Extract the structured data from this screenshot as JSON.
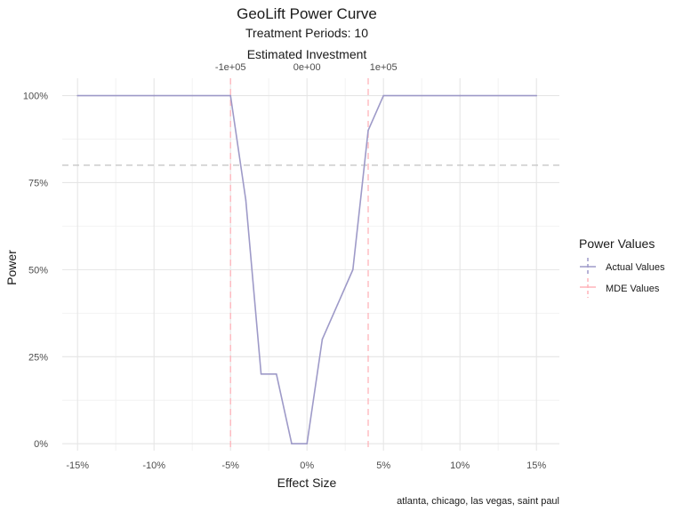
{
  "chart_data": {
    "type": "line",
    "title": "GeoLift Power Curve",
    "subtitle": "Treatment Periods: 10",
    "secondary_axis_title": "Estimated Investment",
    "xlabel": "Effect Size",
    "ylabel": "Power",
    "caption": "atlanta, chicago, las vegas, saint paul",
    "x_tick_labels": [
      "-15%",
      "-10%",
      "-5%",
      "0%",
      "5%",
      "10%",
      "15%"
    ],
    "x_tick_values": [
      -0.15,
      -0.1,
      -0.05,
      0,
      0.05,
      0.1,
      0.15
    ],
    "y_tick_labels": [
      "0%",
      "25%",
      "50%",
      "75%",
      "100%"
    ],
    "y_tick_values": [
      0,
      0.25,
      0.5,
      0.75,
      1.0
    ],
    "secondary_x_tick_labels": [
      "-1e+05",
      "0e+00",
      "1e+05"
    ],
    "secondary_x_tick_values": [
      -100000,
      0,
      100000
    ],
    "secondary_x_per_effect": 2000000,
    "xlim": [
      -0.16,
      0.165
    ],
    "ylim": [
      -0.02,
      1.05
    ],
    "grid": true,
    "legend_position": "right",
    "legend_title": "Power Values",
    "series": [
      {
        "name": "Actual Values",
        "color": "#9e9ac8",
        "x": [
          -0.15,
          -0.1,
          -0.05,
          -0.04,
          -0.03,
          -0.02,
          -0.01,
          0.0,
          0.01,
          0.02,
          0.03,
          0.04,
          0.05,
          0.1,
          0.15
        ],
        "y": [
          1.0,
          1.0,
          1.0,
          0.7,
          0.2,
          0.2,
          0.0,
          0.0,
          0.3,
          0.4,
          0.5,
          0.9,
          1.0,
          1.0,
          1.0
        ]
      }
    ],
    "mde_lines": {
      "name": "MDE Values",
      "color": "#ffb3ba",
      "x": [
        -0.05,
        0.04
      ]
    },
    "reference_line": {
      "y": 0.8,
      "color": "#c2c2c2"
    }
  }
}
